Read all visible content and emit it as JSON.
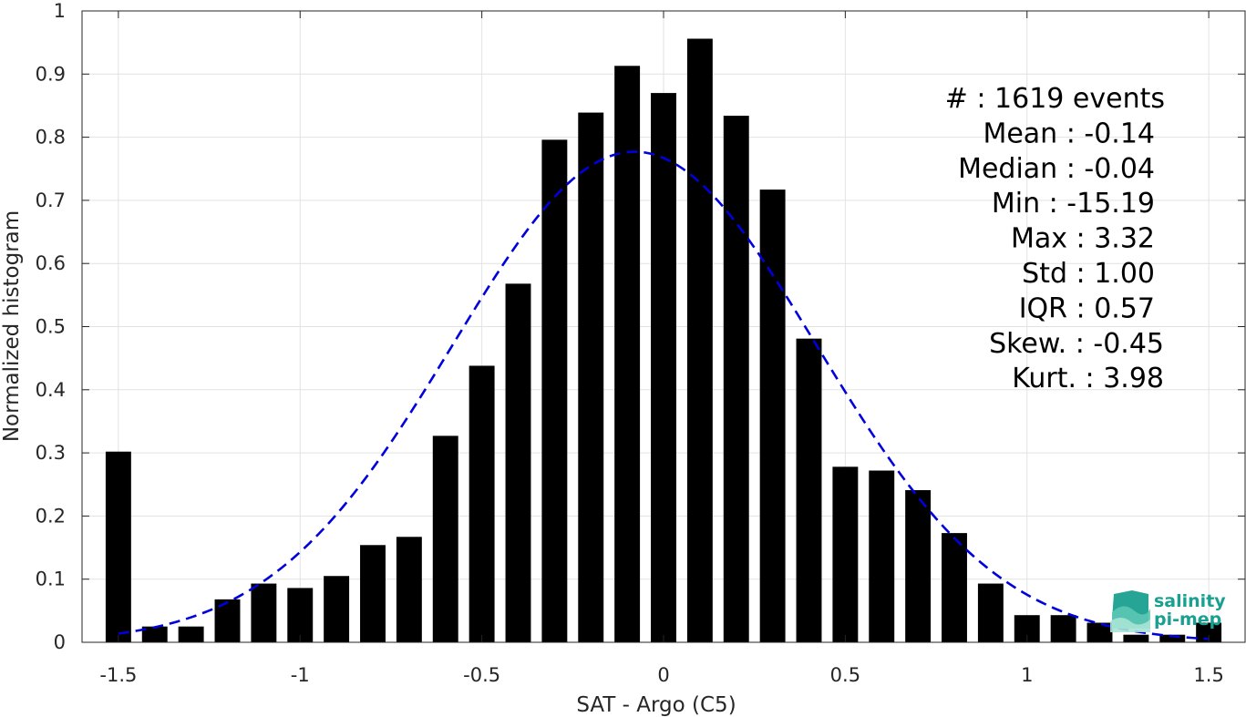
{
  "chart_data": {
    "type": "bar",
    "xlabel": "SAT - Argo (C5)",
    "ylabel": "Normalized histogram",
    "xlim": [
      -1.6,
      1.6
    ],
    "ylim": [
      0,
      1
    ],
    "xticks": [
      -1.5,
      -1,
      -0.5,
      0,
      0.5,
      1,
      1.5
    ],
    "xtick_labels": [
      "-1.5",
      "-1",
      "-0.5",
      "0",
      "0.5",
      "1",
      "1.5"
    ],
    "yticks": [
      0,
      0.1,
      0.2,
      0.3,
      0.4,
      0.5,
      0.6,
      0.7,
      0.8,
      0.9,
      1
    ],
    "ytick_labels": [
      "0",
      "0.1",
      "0.2",
      "0.3",
      "0.4",
      "0.5",
      "0.6",
      "0.7",
      "0.8",
      "0.9",
      "1"
    ],
    "grid": true,
    "bar_width": 0.07,
    "bar_color": "#000000",
    "bin_centers": [
      -1.5,
      -1.4,
      -1.3,
      -1.2,
      -1.1,
      -1.0,
      -0.9,
      -0.8,
      -0.7,
      -0.6,
      -0.5,
      -0.4,
      -0.3,
      -0.2,
      -0.1,
      0.0,
      0.1,
      0.2,
      0.3,
      0.4,
      0.5,
      0.6,
      0.7,
      0.8,
      0.9,
      1.0,
      1.1,
      1.2,
      1.3,
      1.4,
      1.5
    ],
    "values": [
      0.302,
      0.025,
      0.025,
      0.068,
      0.093,
      0.086,
      0.105,
      0.154,
      0.167,
      0.327,
      0.438,
      0.568,
      0.796,
      0.839,
      0.913,
      0.87,
      0.956,
      0.834,
      0.717,
      0.481,
      0.278,
      0.272,
      0.241,
      0.173,
      0.093,
      0.043,
      0.043,
      0.031,
      0.012,
      0.012,
      0.031
    ],
    "fit_curve": {
      "style": "dashed",
      "color": "#0000dd",
      "mean": -0.08,
      "std": 0.5,
      "peak": 0.777,
      "x_range": [
        -1.5,
        1.5
      ]
    },
    "stats_lines": [
      "#  : 1619 events",
      "Mean : -0.14",
      "Median : -0.04",
      "Min : -15.19",
      "Max : 3.32",
      "Std : 1.00",
      "IQR : 0.57",
      "Skew. : -0.45",
      "Kurt. : 3.98"
    ]
  },
  "logo": {
    "line1": "salinity",
    "line2": "pi-mep",
    "color": "#1aa090"
  }
}
